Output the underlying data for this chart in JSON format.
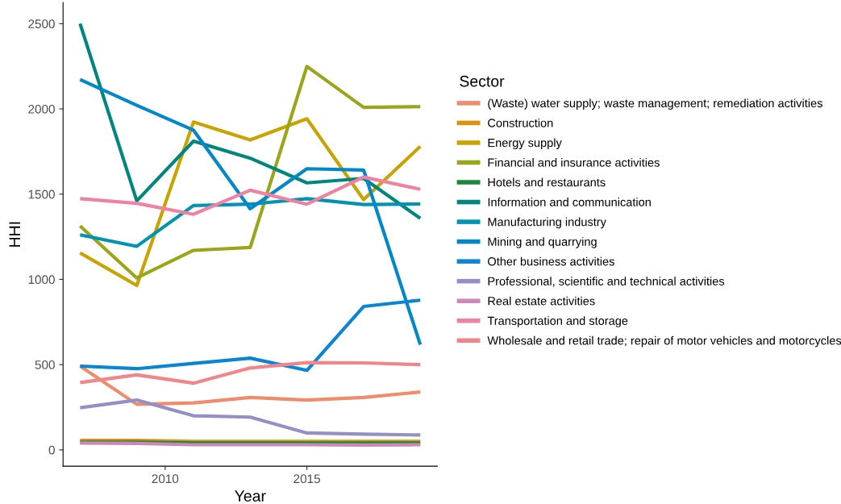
{
  "chart_data": {
    "type": "line",
    "xlabel": "Year",
    "ylabel": "HHI",
    "legend_title": "Sector",
    "legend": "right",
    "grid": false,
    "x": [
      2007,
      2009,
      2011,
      2013,
      2015,
      2017,
      2019
    ],
    "xlim": [
      2006.4,
      2019.6
    ],
    "xticks": [
      2010,
      2015
    ],
    "ylim": [
      -96,
      2624
    ],
    "yticks": [
      0,
      500,
      1000,
      1500,
      2000,
      2500
    ],
    "series": [
      {
        "name": "(Waste) water supply; waste management; remediation activities",
        "color": "#f08c6c",
        "values": [
          491,
          267,
          275,
          307,
          292,
          307,
          339
        ]
      },
      {
        "name": "Construction",
        "color": "#e0900f",
        "values": [
          55,
          55,
          50,
          50,
          50,
          50,
          50
        ]
      },
      {
        "name": "Energy supply",
        "color": "#c9a400",
        "values": [
          1155,
          964,
          1923,
          1818,
          1942,
          1468,
          1780
        ]
      },
      {
        "name": "Financial and insurance activities",
        "color": "#9ba51a",
        "values": [
          1313,
          1008,
          1170,
          1187,
          2249,
          2009,
          2013
        ]
      },
      {
        "name": "Hotels and restaurants",
        "color": "#1a8a3a",
        "values": [
          45,
          45,
          40,
          40,
          40,
          40,
          40
        ]
      },
      {
        "name": "Information and communication",
        "color": "#00867d",
        "values": [
          2500,
          1460,
          1811,
          1711,
          1566,
          1592,
          1358
        ]
      },
      {
        "name": "Manufacturing industry",
        "color": "#0093b2",
        "values": [
          1261,
          1194,
          1433,
          1441,
          1473,
          1439,
          1442
        ]
      },
      {
        "name": "Mining and quarrying",
        "color": "#0088c9",
        "values": [
          2172,
          2021,
          1875,
          1414,
          1649,
          1641,
          617
        ]
      },
      {
        "name": "Other business activities",
        "color": "#0a84d4",
        "values": [
          491,
          476,
          507,
          538,
          466,
          841,
          878
        ]
      },
      {
        "name": "Professional, scientific and technical activities",
        "color": "#9490c6",
        "values": [
          247,
          292,
          200,
          192,
          99,
          92,
          87
        ]
      },
      {
        "name": "Real estate activities",
        "color": "#cc88bb",
        "values": [
          40,
          38,
          30,
          30,
          30,
          28,
          30
        ]
      },
      {
        "name": "Transportation and storage",
        "color": "#ee82a0",
        "values": [
          1473,
          1446,
          1382,
          1523,
          1441,
          1600,
          1528
        ]
      },
      {
        "name": "Wholesale and retail trade; repair of motor vehicles and motorcycles",
        "color": "#f0868a",
        "values": [
          395,
          440,
          391,
          480,
          512,
          510,
          500
        ]
      }
    ]
  }
}
